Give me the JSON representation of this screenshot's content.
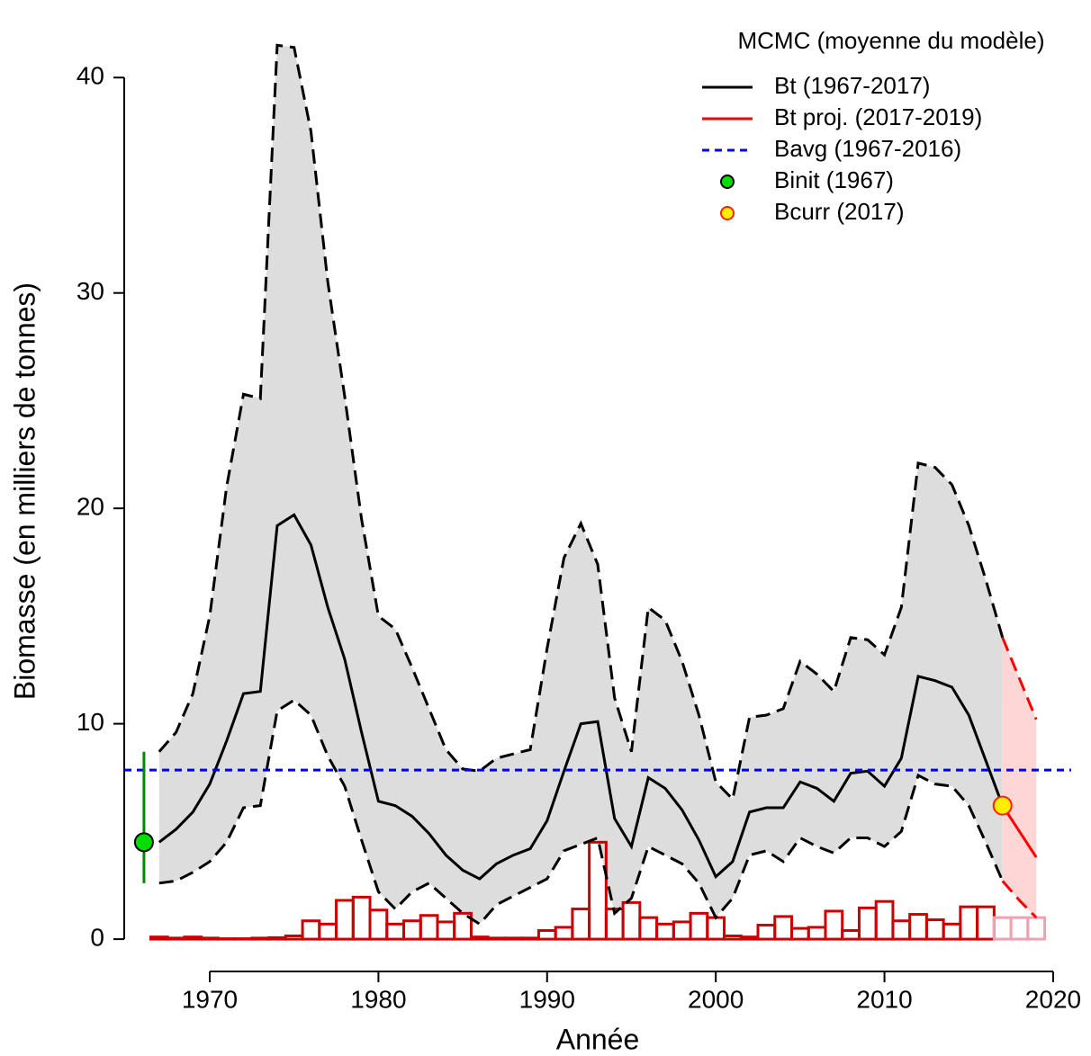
{
  "chart_data": {
    "type": "line",
    "xlabel": "Année",
    "ylabel": "Biomasse (en milliers de tonnes)",
    "legend_title": "MCMC (moyenne du modèle)",
    "legend": "top-right",
    "xlim": [
      1964.93,
      2021.07
    ],
    "ylim": [
      -1.5,
      43.1
    ],
    "xticks": [
      1970,
      1980,
      1990,
      2000,
      2010,
      2020
    ],
    "yticks": [
      0,
      10,
      20,
      30,
      40
    ],
    "band_color": "#dddddd",
    "series": [
      {
        "name": "Bt (1967-2017)",
        "color": "#000000",
        "linestyle": "solid",
        "band_color": "#dddddd",
        "x": [
          1967,
          1968,
          1969,
          1970,
          1971,
          1972,
          1973,
          1974,
          1975,
          1976,
          1977,
          1978,
          1979,
          1980,
          1981,
          1982,
          1983,
          1984,
          1985,
          1986,
          1987,
          1988,
          1989,
          1990,
          1991,
          1992,
          1993,
          1994,
          1995,
          1996,
          1997,
          1998,
          1999,
          2000,
          2001,
          2002,
          2003,
          2004,
          2005,
          2006,
          2007,
          2008,
          2009,
          2010,
          2011,
          2012,
          2013,
          2014,
          2015,
          2016,
          2017
        ],
        "values": [
          4.5,
          5.1,
          5.9,
          7.2,
          9.2,
          11.4,
          11.5,
          19.2,
          19.7,
          18.3,
          15.4,
          13.0,
          9.6,
          6.4,
          6.2,
          5.7,
          4.9,
          3.9,
          3.2,
          2.8,
          3.5,
          3.9,
          4.2,
          5.5,
          7.8,
          10.0,
          10.1,
          5.6,
          4.3,
          7.5,
          7.0,
          6.0,
          4.6,
          2.9,
          3.6,
          5.9,
          6.1,
          6.1,
          7.3,
          7.0,
          6.4,
          7.7,
          7.8,
          7.1,
          8.4,
          12.2,
          12.0,
          11.7,
          10.4,
          8.3,
          6.2
        ],
        "upper": [
          8.7,
          9.6,
          11.4,
          15.0,
          21.0,
          25.3,
          25.1,
          41.5,
          41.4,
          37.5,
          30.5,
          25.2,
          19.5,
          15.0,
          14.4,
          12.6,
          10.7,
          8.8,
          7.9,
          7.8,
          8.4,
          8.6,
          8.8,
          13.5,
          17.7,
          19.3,
          17.4,
          11.2,
          8.7,
          15.4,
          14.8,
          12.9,
          10.4,
          7.3,
          6.5,
          10.3,
          10.4,
          10.7,
          12.9,
          12.3,
          11.5,
          14.0,
          13.9,
          13.2,
          15.4,
          22.1,
          21.9,
          21.1,
          19.2,
          16.7,
          14.0
        ],
        "lower": [
          2.6,
          2.7,
          3.1,
          3.6,
          4.5,
          6.1,
          6.2,
          10.6,
          11.1,
          10.4,
          8.5,
          7.1,
          4.6,
          2.2,
          1.4,
          2.2,
          2.6,
          1.9,
          1.2,
          0.7,
          1.6,
          2.0,
          2.4,
          2.8,
          4.1,
          4.4,
          4.7,
          1.2,
          1.9,
          4.3,
          3.9,
          3.5,
          2.6,
          1.0,
          1.9,
          3.9,
          4.1,
          3.6,
          4.7,
          4.3,
          4.0,
          4.7,
          4.7,
          4.3,
          5.0,
          7.6,
          7.2,
          7.1,
          6.2,
          4.5,
          2.7
        ]
      },
      {
        "name": "Bt proj. (2017-2019)",
        "color": "#ff0000",
        "linestyle": "solid",
        "band_color": "#ffd6d6",
        "x": [
          2017,
          2018,
          2019
        ],
        "values": [
          6.2,
          5.0,
          3.8
        ],
        "upper": [
          14.0,
          12.1,
          10.2
        ],
        "lower": [
          2.7,
          1.8,
          1.0
        ]
      },
      {
        "name": "Bavg (1967-2016)",
        "color": "#0000ee",
        "linestyle": "dotted",
        "value": 7.85
      },
      {
        "name": "Binit (1967)",
        "color": "#00dd00",
        "marker": "point",
        "bar_color": "#008800",
        "x": 1966.1,
        "value": 4.5,
        "lower": 2.6,
        "upper": 8.7
      },
      {
        "name": "Bcurr (2017)",
        "color": "#ffee00",
        "marker": "point",
        "edge_color": "#ff2200",
        "x": 2017,
        "value": 6.2
      }
    ],
    "catch": {
      "color": "#cc0000",
      "x": [
        1967,
        1968,
        1969,
        1970,
        1971,
        1972,
        1973,
        1974,
        1975,
        1976,
        1977,
        1978,
        1979,
        1980,
        1981,
        1982,
        1983,
        1984,
        1985,
        1986,
        1987,
        1988,
        1989,
        1990,
        1991,
        1992,
        1993,
        1994,
        1995,
        1996,
        1997,
        1998,
        1999,
        2000,
        2001,
        2002,
        2003,
        2004,
        2005,
        2006,
        2007,
        2008,
        2009,
        2010,
        2011,
        2012,
        2013,
        2014,
        2015,
        2016
      ],
      "values": [
        0.1,
        0.05,
        0.1,
        0.05,
        0.02,
        0.02,
        0.05,
        0.07,
        0.15,
        0.85,
        0.7,
        1.8,
        1.95,
        1.35,
        0.7,
        0.85,
        1.1,
        0.8,
        1.2,
        0.1,
        0.05,
        0.05,
        0.05,
        0.4,
        0.55,
        1.4,
        4.5,
        1.4,
        1.7,
        1.0,
        0.7,
        0.8,
        1.2,
        1.0,
        0.15,
        0.1,
        0.65,
        1.05,
        0.5,
        0.55,
        1.3,
        0.4,
        1.45,
        1.75,
        0.85,
        1.15,
        0.9,
        0.7,
        1.5,
        1.5
      ]
    },
    "catch_proj": {
      "color": "#f0a0b0",
      "x": [
        2017,
        2018,
        2019
      ],
      "values": [
        1.0,
        1.0,
        1.0
      ]
    }
  }
}
